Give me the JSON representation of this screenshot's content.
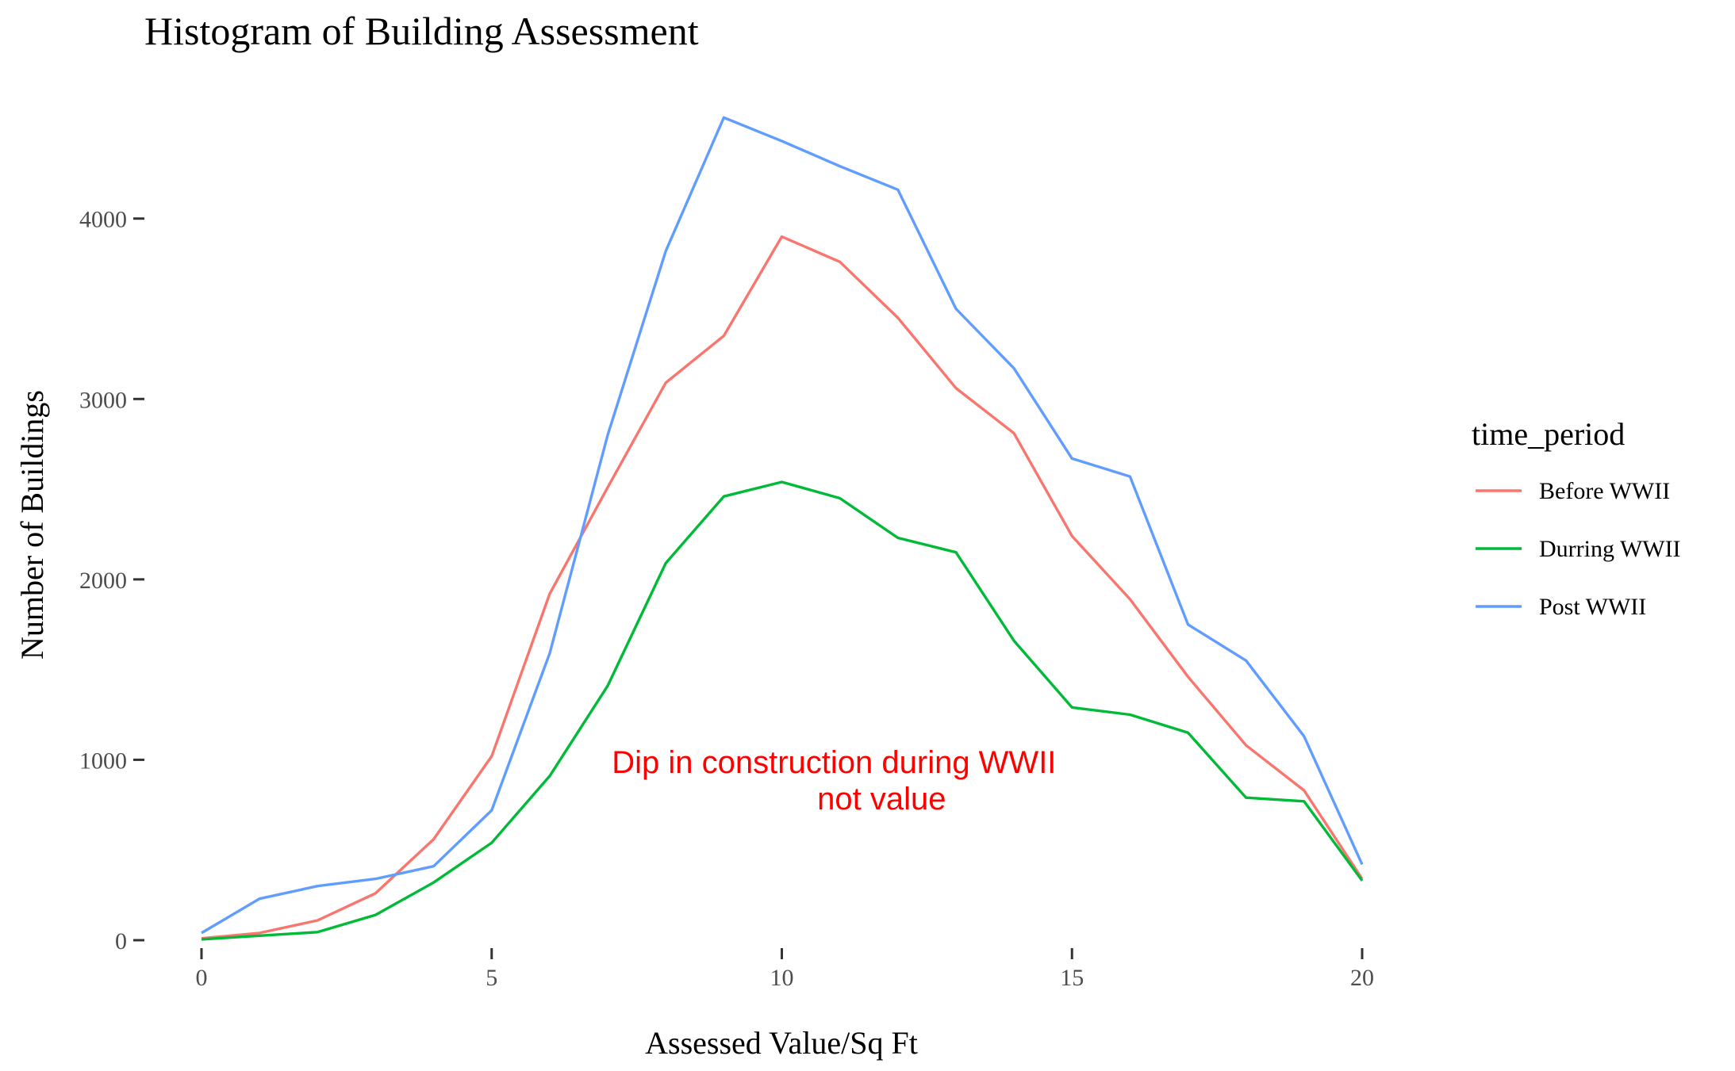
{
  "chart_data": {
    "type": "line",
    "title": "Histogram of Building Assessment",
    "xlabel": "Assessed Value/Sq Ft",
    "ylabel": "Number of Buildings",
    "xlim": [
      0,
      20
    ],
    "ylim": [
      0,
      4570
    ],
    "xticks": [
      0,
      5,
      10,
      15,
      20
    ],
    "yticks": [
      0,
      1000,
      2000,
      3000,
      4000
    ],
    "grid": false,
    "legend": {
      "title": "time_period",
      "position": "right"
    },
    "x": [
      0,
      1,
      2,
      3,
      4,
      5,
      6,
      7,
      8,
      9,
      10,
      11,
      12,
      13,
      14,
      15,
      16,
      17,
      18,
      19,
      20
    ],
    "series": [
      {
        "name": "Before WWII",
        "color": "#F8766D",
        "values": [
          10,
          40,
          110,
          260,
          560,
          1020,
          1920,
          2510,
          3090,
          3350,
          3900,
          3760,
          3450,
          3060,
          2810,
          2240,
          1890,
          1460,
          1080,
          830,
          340
        ]
      },
      {
        "name": "Durring WWII",
        "color": "#00BA38",
        "values": [
          5,
          25,
          45,
          140,
          320,
          540,
          910,
          1410,
          2090,
          2460,
          2540,
          2450,
          2230,
          2150,
          1660,
          1290,
          1250,
          1150,
          790,
          770,
          330
        ]
      },
      {
        "name": "Post WWII",
        "color": "#619CFF",
        "values": [
          40,
          230,
          300,
          340,
          410,
          720,
          1590,
          2800,
          3820,
          4560,
          4430,
          4290,
          4160,
          3500,
          3170,
          2670,
          2570,
          1750,
          1550,
          1130,
          420
        ]
      }
    ],
    "annotation": {
      "lines": [
        "Dip in construction during WWII",
        "not value"
      ],
      "color": "#FF0000",
      "x": 10.9,
      "y": 900
    }
  }
}
